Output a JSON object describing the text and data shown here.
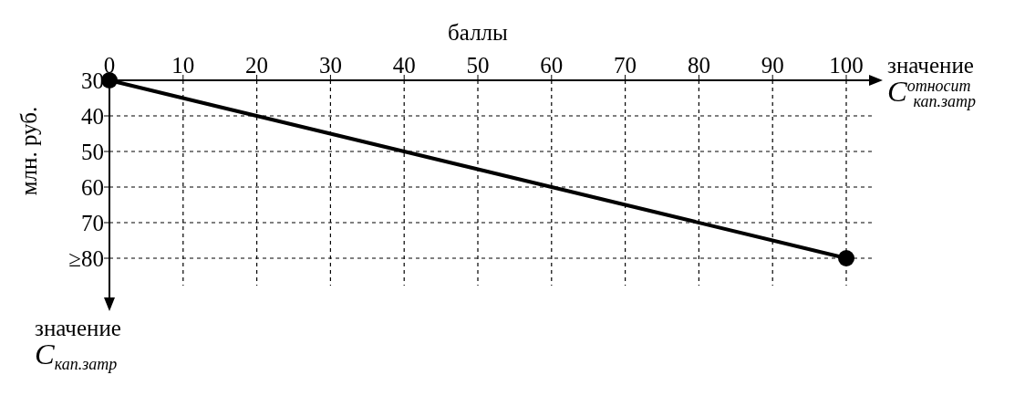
{
  "chart_data": {
    "type": "line",
    "xlabel": "баллы",
    "ylabel": "млн. руб.",
    "x": [
      0,
      100
    ],
    "series": [
      {
        "color": "#000000",
        "values": [
          30,
          80
        ]
      }
    ],
    "xlim": [
      0,
      100
    ],
    "xticks": [
      0,
      10,
      20,
      30,
      40,
      50,
      60,
      70,
      80,
      90,
      100
    ],
    "ylim": [
      80,
      30
    ],
    "yticks": [
      30,
      40,
      50,
      60,
      70,
      {
        "value": 80,
        "label": "≥80"
      }
    ],
    "grid": true,
    "marker": "circle",
    "line_style": "solid",
    "annotations": [
      "значение\nC$^{относит}$$_{кап.затр}$",
      "значение\nC$_{кап.затр}$"
    ]
  }
}
